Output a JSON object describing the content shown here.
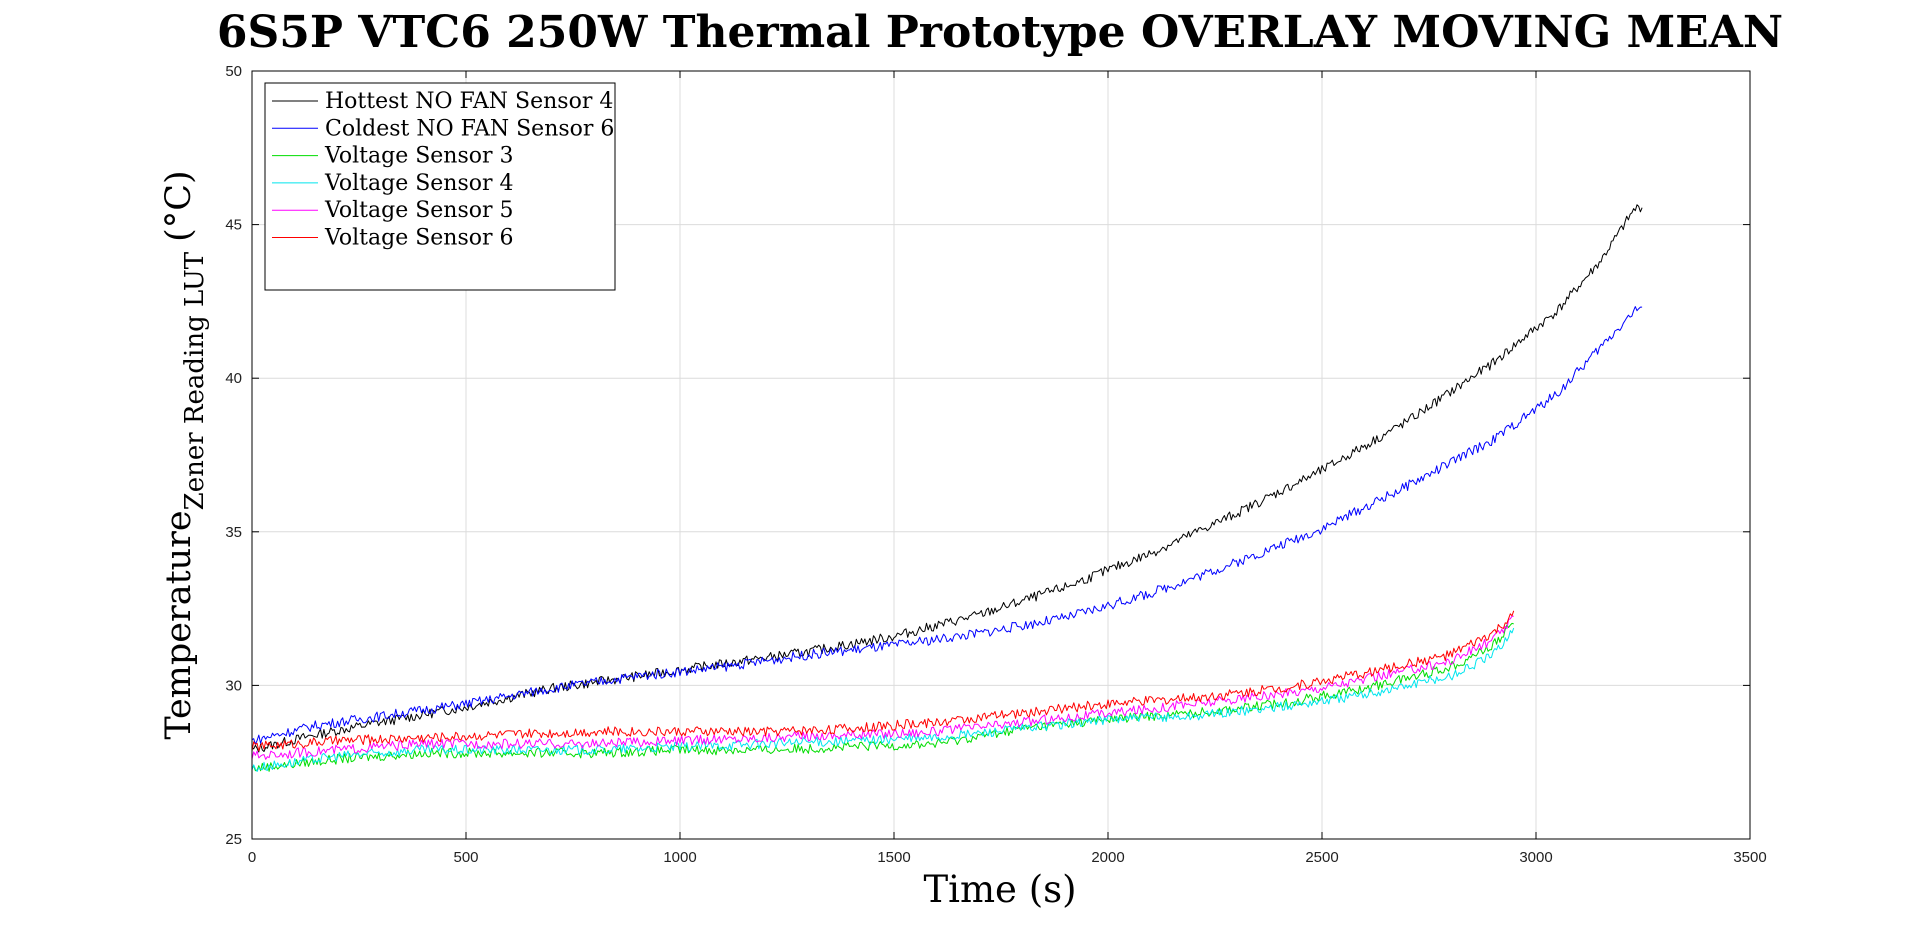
{
  "chart_data": {
    "type": "line",
    "title": "6S5P VTC6 250W Thermal Prototype OVERLAY MOVING MEAN",
    "xlabel": "Time (s)",
    "ylabel_main": "Temperature",
    "ylabel_sub": "Zener Reading LUT",
    "ylabel_unit": "(°C)",
    "xlim": [
      0,
      3500
    ],
    "ylim": [
      25,
      50
    ],
    "xticks": [
      0,
      500,
      1000,
      1500,
      2000,
      2500,
      3000,
      3500
    ],
    "yticks": [
      25,
      30,
      35,
      40,
      45,
      50
    ],
    "grid": true,
    "legend_position": "top-left",
    "series": [
      {
        "name": "Hottest NO FAN Sensor 4",
        "color": "#000000",
        "x": [
          0,
          150,
          300,
          500,
          700,
          900,
          1100,
          1300,
          1500,
          1700,
          1900,
          2100,
          2300,
          2500,
          2700,
          2900,
          3050,
          3150,
          3230,
          3250
        ],
        "y": [
          27.9,
          28.4,
          28.8,
          29.3,
          29.9,
          30.3,
          30.7,
          31.1,
          31.6,
          32.3,
          33.2,
          34.3,
          35.6,
          37.0,
          38.6,
          40.5,
          42.2,
          43.8,
          45.5,
          45.6
        ]
      },
      {
        "name": "Coldest NO FAN Sensor 6",
        "color": "#0000ff",
        "x": [
          0,
          150,
          300,
          500,
          700,
          900,
          1100,
          1300,
          1500,
          1700,
          1900,
          2100,
          2300,
          2500,
          2700,
          2900,
          3050,
          3150,
          3230,
          3250
        ],
        "y": [
          28.2,
          28.7,
          29.0,
          29.4,
          29.9,
          30.3,
          30.6,
          31.0,
          31.3,
          31.7,
          32.2,
          33.0,
          34.0,
          35.1,
          36.5,
          38.0,
          39.5,
          41.0,
          42.2,
          42.3
        ]
      },
      {
        "name": "Voltage Sensor 3",
        "color": "#00dd00",
        "x": [
          0,
          200,
          400,
          600,
          800,
          1000,
          1200,
          1400,
          1600,
          1800,
          2000,
          2200,
          2400,
          2600,
          2800,
          2900,
          2950
        ],
        "y": [
          27.3,
          27.6,
          27.8,
          27.8,
          27.8,
          27.9,
          27.9,
          28.0,
          28.1,
          28.6,
          28.9,
          29.1,
          29.4,
          29.9,
          30.6,
          31.3,
          32.1
        ]
      },
      {
        "name": "Voltage Sensor 4",
        "color": "#00e5ee",
        "x": [
          0,
          200,
          400,
          600,
          800,
          1000,
          1200,
          1400,
          1600,
          1800,
          2000,
          2200,
          2400,
          2600,
          2800,
          2900,
          2950
        ],
        "y": [
          27.3,
          27.7,
          27.9,
          27.9,
          27.9,
          28.0,
          28.1,
          28.2,
          28.3,
          28.6,
          28.9,
          29.0,
          29.3,
          29.7,
          30.3,
          31.0,
          31.9
        ]
      },
      {
        "name": "Voltage Sensor 5",
        "color": "#ff00ff",
        "x": [
          0,
          200,
          400,
          600,
          800,
          1000,
          1200,
          1400,
          1600,
          1800,
          2000,
          2200,
          2400,
          2600,
          2800,
          2900,
          2950
        ],
        "y": [
          27.7,
          27.9,
          28.1,
          28.1,
          28.1,
          28.2,
          28.3,
          28.4,
          28.5,
          28.8,
          29.1,
          29.4,
          29.7,
          30.2,
          30.8,
          31.5,
          32.2
        ]
      },
      {
        "name": "Voltage Sensor 6",
        "color": "#ff0000",
        "x": [
          0,
          200,
          400,
          600,
          800,
          1000,
          1200,
          1400,
          1600,
          1800,
          2000,
          2200,
          2400,
          2600,
          2800,
          2900,
          2950
        ],
        "y": [
          28.0,
          28.2,
          28.3,
          28.4,
          28.5,
          28.5,
          28.5,
          28.6,
          28.8,
          29.1,
          29.4,
          29.6,
          29.9,
          30.4,
          31.0,
          31.7,
          32.3
        ]
      }
    ]
  }
}
